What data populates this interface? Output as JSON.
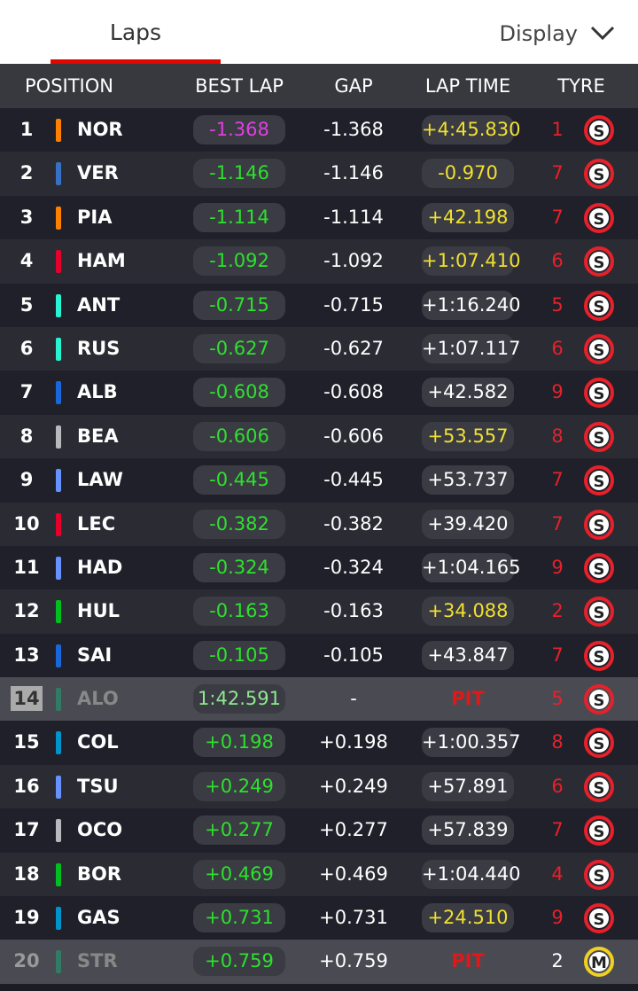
{
  "tabs": {
    "laps": "Laps",
    "display": "Display"
  },
  "table": {
    "headers": [
      "POSITION",
      "BEST LAP",
      "GAP",
      "LAP TIME",
      "TYRE"
    ],
    "rows": [
      {
        "pos": 1,
        "driver": "NOR",
        "team_color": "#ff8000",
        "best": "-1.368",
        "best_color": "#e040e0",
        "gap": "-1.368",
        "lap": "+4:45.830",
        "lap_color": "#f0e030",
        "laps": 1,
        "tyre": "S",
        "tyre_color": "#e8202a"
      },
      {
        "pos": 2,
        "driver": "VER",
        "team_color": "#3671c6",
        "best": "-1.146",
        "best_color": "#2ee02e",
        "gap": "-1.146",
        "lap": "-0.970",
        "lap_color": "#f0e030",
        "laps": 7,
        "tyre": "S",
        "tyre_color": "#e8202a"
      },
      {
        "pos": 3,
        "driver": "PIA",
        "team_color": "#ff8000",
        "best": "-1.114",
        "best_color": "#2ee02e",
        "gap": "-1.114",
        "lap": "+42.198",
        "lap_color": "#f0e030",
        "laps": 7,
        "tyre": "S",
        "tyre_color": "#e8202a"
      },
      {
        "pos": 4,
        "driver": "HAM",
        "team_color": "#e8002d",
        "best": "-1.092",
        "best_color": "#2ee02e",
        "gap": "-1.092",
        "lap": "+1:07.410",
        "lap_color": "#f0e030",
        "laps": 6,
        "tyre": "S",
        "tyre_color": "#e8202a"
      },
      {
        "pos": 5,
        "driver": "ANT",
        "team_color": "#27f4d2",
        "best": "-0.715",
        "best_color": "#2ee02e",
        "gap": "-0.715",
        "lap": "+1:16.240",
        "lap_color": "#ffffff",
        "laps": 5,
        "tyre": "S",
        "tyre_color": "#e8202a"
      },
      {
        "pos": 6,
        "driver": "RUS",
        "team_color": "#27f4d2",
        "best": "-0.627",
        "best_color": "#2ee02e",
        "gap": "-0.627",
        "lap": "+1:07.117",
        "lap_color": "#ffffff",
        "laps": 6,
        "tyre": "S",
        "tyre_color": "#e8202a"
      },
      {
        "pos": 7,
        "driver": "ALB",
        "team_color": "#1868db",
        "best": "-0.608",
        "best_color": "#2ee02e",
        "gap": "-0.608",
        "lap": "+42.582",
        "lap_color": "#ffffff",
        "laps": 9,
        "tyre": "S",
        "tyre_color": "#e8202a"
      },
      {
        "pos": 8,
        "driver": "BEA",
        "team_color": "#b6babd",
        "best": "-0.606",
        "best_color": "#2ee02e",
        "gap": "-0.606",
        "lap": "+53.557",
        "lap_color": "#f0e030",
        "laps": 8,
        "tyre": "S",
        "tyre_color": "#e8202a"
      },
      {
        "pos": 9,
        "driver": "LAW",
        "team_color": "#6692ff",
        "best": "-0.445",
        "best_color": "#2ee02e",
        "gap": "-0.445",
        "lap": "+53.737",
        "lap_color": "#ffffff",
        "laps": 7,
        "tyre": "S",
        "tyre_color": "#e8202a"
      },
      {
        "pos": 10,
        "driver": "LEC",
        "team_color": "#e8002d",
        "best": "-0.382",
        "best_color": "#2ee02e",
        "gap": "-0.382",
        "lap": "+39.420",
        "lap_color": "#ffffff",
        "laps": 7,
        "tyre": "S",
        "tyre_color": "#e8202a"
      },
      {
        "pos": 11,
        "driver": "HAD",
        "team_color": "#6692ff",
        "best": "-0.324",
        "best_color": "#2ee02e",
        "gap": "-0.324",
        "lap": "+1:04.165",
        "lap_color": "#ffffff",
        "laps": 9,
        "tyre": "S",
        "tyre_color": "#e8202a"
      },
      {
        "pos": 12,
        "driver": "HUL",
        "team_color": "#00c020",
        "best": "-0.163",
        "best_color": "#2ee02e",
        "gap": "-0.163",
        "lap": "+34.088",
        "lap_color": "#f0e030",
        "laps": 2,
        "tyre": "S",
        "tyre_color": "#e8202a"
      },
      {
        "pos": 13,
        "driver": "SAI",
        "team_color": "#1868db",
        "best": "-0.105",
        "best_color": "#2ee02e",
        "gap": "-0.105",
        "lap": "+43.847",
        "lap_color": "#ffffff",
        "laps": 7,
        "tyre": "S",
        "tyre_color": "#e8202a"
      },
      {
        "pos": 14,
        "driver": "ALO",
        "team_color": "#229971",
        "best": "1:42.591",
        "best_color": "#90e890",
        "gap": "-",
        "lap": "PIT",
        "lap_color": "#e01818",
        "laps": 5,
        "tyre": "S",
        "tyre_color": "#e8202a",
        "dim": true
      },
      {
        "pos": 15,
        "driver": "COL",
        "team_color": "#0093cc",
        "best": "+0.198",
        "best_color": "#2ee02e",
        "gap": "+0.198",
        "lap": "+1:00.357",
        "lap_color": "#ffffff",
        "laps": 8,
        "tyre": "S",
        "tyre_color": "#e8202a"
      },
      {
        "pos": 16,
        "driver": "TSU",
        "team_color": "#6692ff",
        "best": "+0.249",
        "best_color": "#2ee02e",
        "gap": "+0.249",
        "lap": "+57.891",
        "lap_color": "#ffffff",
        "laps": 6,
        "tyre": "S",
        "tyre_color": "#e8202a"
      },
      {
        "pos": 17,
        "driver": "OCO",
        "team_color": "#b6babd",
        "best": "+0.277",
        "best_color": "#2ee02e",
        "gap": "+0.277",
        "lap": "+57.839",
        "lap_color": "#ffffff",
        "laps": 7,
        "tyre": "S",
        "tyre_color": "#e8202a"
      },
      {
        "pos": 18,
        "driver": "BOR",
        "team_color": "#00c020",
        "best": "+0.469",
        "best_color": "#2ee02e",
        "gap": "+0.469",
        "lap": "+1:04.440",
        "lap_color": "#ffffff",
        "laps": 4,
        "tyre": "S",
        "tyre_color": "#e8202a"
      },
      {
        "pos": 19,
        "driver": "GAS",
        "team_color": "#0093cc",
        "best": "+0.731",
        "best_color": "#2ee02e",
        "gap": "+0.731",
        "lap": "+24.510",
        "lap_color": "#f0e030",
        "laps": 9,
        "tyre": "S",
        "tyre_color": "#e8202a"
      },
      {
        "pos": 20,
        "driver": "STR",
        "team_color": "#229971",
        "best": "+0.759",
        "best_color": "#2ee02e",
        "gap": "+0.759",
        "lap": "PIT",
        "lap_color": "#e01818",
        "laps": 2,
        "tyre": "M",
        "tyre_color": "#f0d020",
        "dim": true
      }
    ]
  }
}
